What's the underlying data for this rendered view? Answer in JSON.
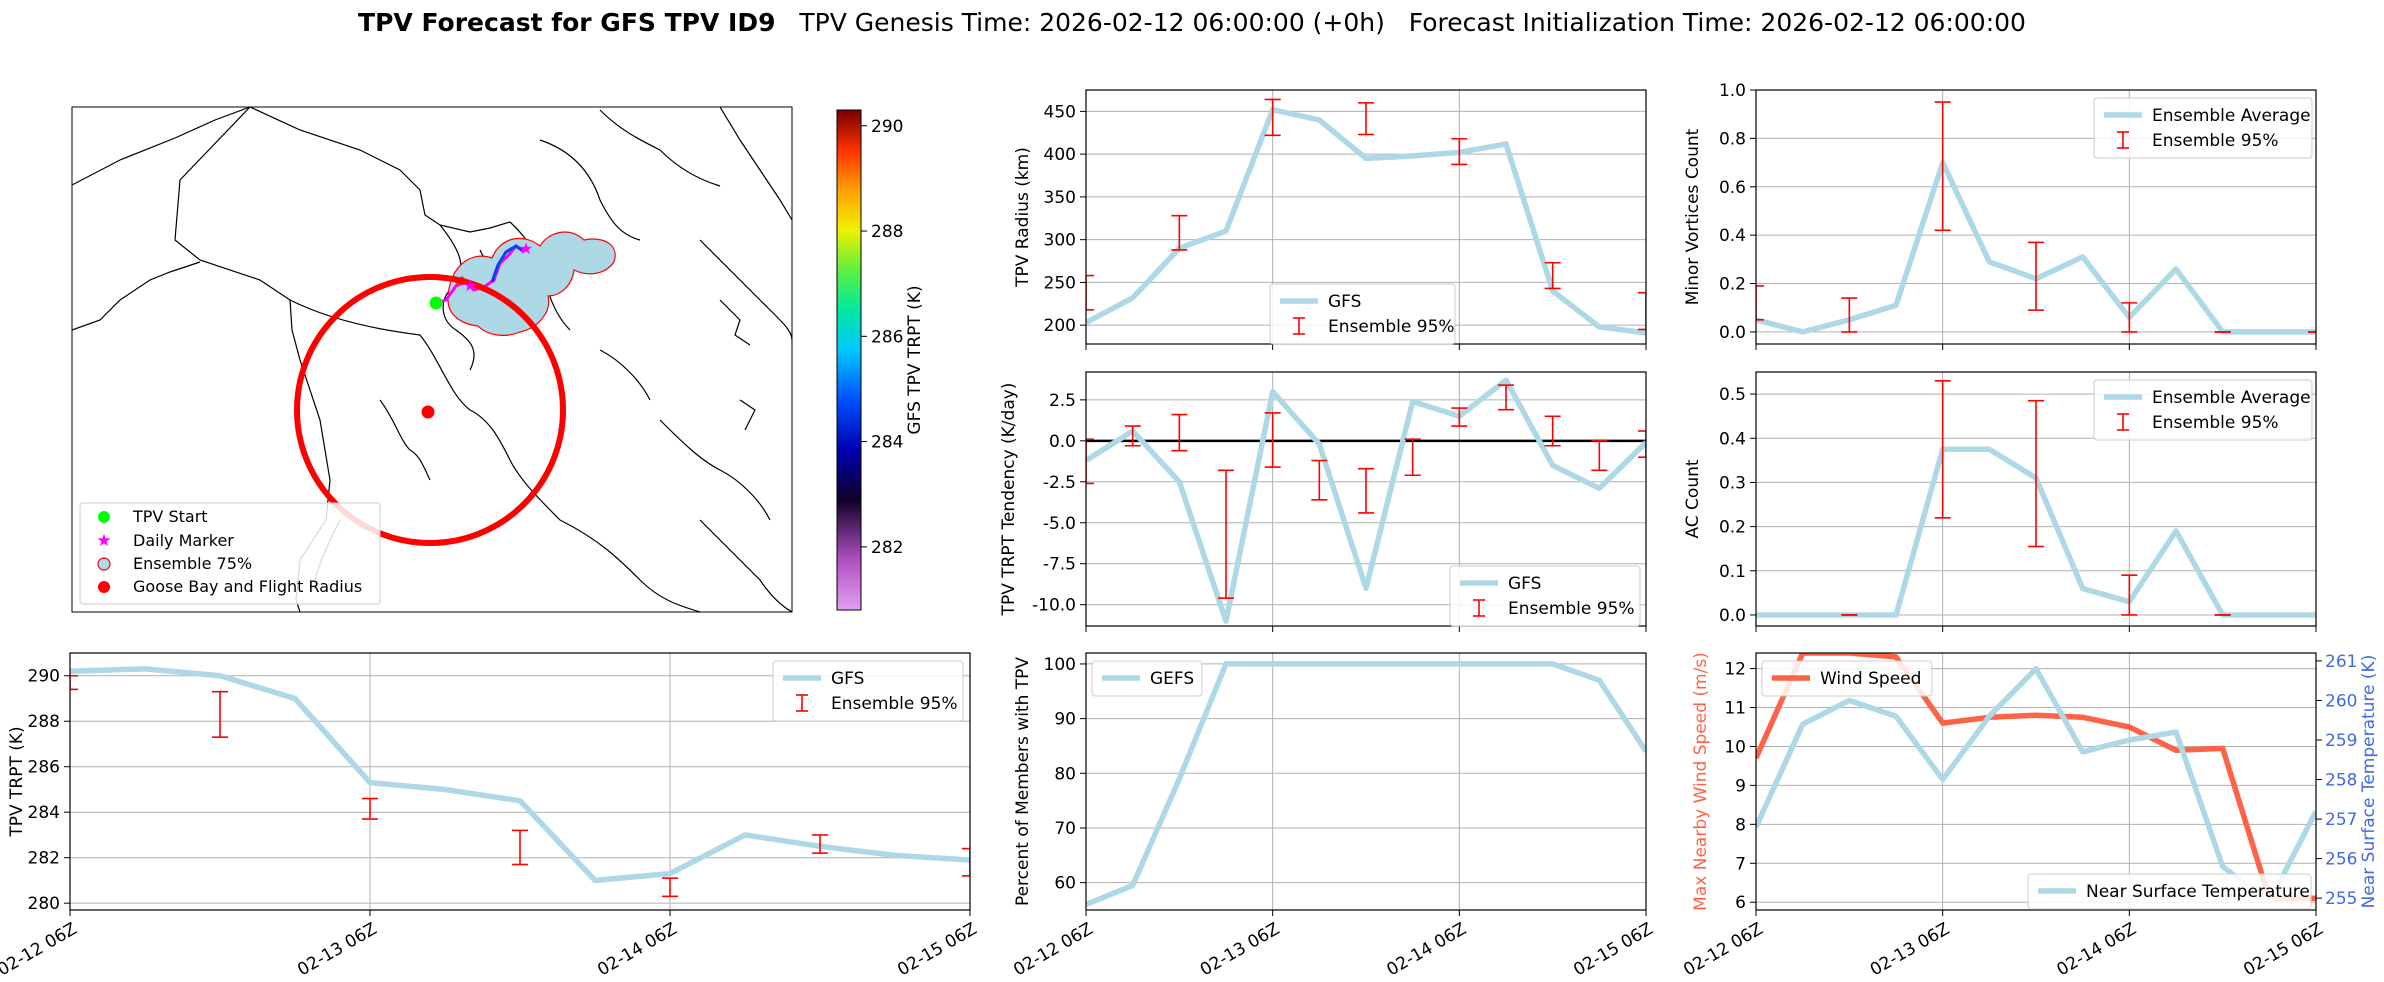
{
  "suptitle": {
    "bold": "TPV Forecast for GFS TPV ID9",
    "genesis": "TPV Genesis Time: 2026-02-12 06:00:00 (+0h)",
    "init": "Forecast Initialization Time: 2026-02-12 06:00:00"
  },
  "map": {
    "legend": [
      "TPV Start",
      "Daily Marker",
      "Ensemble 75%",
      "Goose Bay and Flight Radius"
    ],
    "colorbar_label": "GFS TPV TRPT (K)",
    "colorbar_ticks": [
      282,
      284,
      286,
      288,
      290
    ],
    "colorbar_range": [
      280.8,
      290.3
    ],
    "colors": {
      "start": "#00ff00",
      "daily": "#ff00ff",
      "goose": "#ff0000",
      "ensemble_fill": "#add8e6",
      "ensemble_edge": "#ff0000"
    }
  },
  "x_tick_labels": [
    "02-12 06Z",
    "02-13 06Z",
    "02-14 06Z",
    "02-15 06Z"
  ],
  "colors": {
    "line": "#add8e6",
    "error": "#ff0000",
    "wind": "#ff6347",
    "temp_axis": "#4169e1"
  },
  "chart_data": [
    {
      "id": "radius",
      "type": "line",
      "ylabel": "TPV Radius (km)",
      "xlim": [
        0,
        72
      ],
      "ylim": [
        178,
        475
      ],
      "yticks": [
        200,
        250,
        300,
        350,
        400,
        450
      ],
      "legend": [
        "GFS",
        "Ensemble 95%"
      ],
      "series": [
        {
          "name": "GFS",
          "x": [
            0,
            6,
            12,
            18,
            24,
            30,
            36,
            42,
            48,
            54,
            60,
            66,
            72
          ],
          "y": [
            203,
            232,
            290,
            310,
            452,
            440,
            395,
            398,
            402,
            412,
            240,
            198,
            191
          ]
        }
      ],
      "errorbars": [
        {
          "x": 0,
          "low": 218,
          "high": 258
        },
        {
          "x": 12,
          "low": 288,
          "high": 328
        },
        {
          "x": 24,
          "low": 422,
          "high": 464
        },
        {
          "x": 36,
          "low": 423,
          "high": 460
        },
        {
          "x": 48,
          "low": 388,
          "high": 418
        },
        {
          "x": 60,
          "low": 243,
          "high": 273
        },
        {
          "x": 72,
          "low": 195,
          "high": 238
        }
      ]
    },
    {
      "id": "minor",
      "type": "line",
      "ylabel": "Minor Vortices Count",
      "xlim": [
        0,
        72
      ],
      "ylim": [
        -0.05,
        1.0
      ],
      "yticks": [
        0.0,
        0.2,
        0.4,
        0.6,
        0.8,
        1.0
      ],
      "legend": [
        "Ensemble Average",
        "Ensemble 95%"
      ],
      "series": [
        {
          "name": "Ensemble Average",
          "x": [
            0,
            6,
            12,
            18,
            24,
            30,
            36,
            42,
            48,
            54,
            60,
            66,
            72
          ],
          "y": [
            0.05,
            0.0,
            0.05,
            0.11,
            0.7,
            0.29,
            0.22,
            0.31,
            0.06,
            0.26,
            0.0,
            0.0,
            0.0
          ]
        }
      ],
      "errorbars": [
        {
          "x": 0,
          "low": 0.05,
          "high": 0.19
        },
        {
          "x": 12,
          "low": 0.0,
          "high": 0.14
        },
        {
          "x": 24,
          "low": 0.42,
          "high": 0.95
        },
        {
          "x": 36,
          "low": 0.09,
          "high": 0.37
        },
        {
          "x": 48,
          "low": 0.0,
          "high": 0.12
        },
        {
          "x": 60,
          "low": 0.0,
          "high": 0.0
        },
        {
          "x": 72,
          "low": 0.0,
          "high": 0.0
        }
      ]
    },
    {
      "id": "tendency",
      "type": "line",
      "ylabel": "TPV TRPT Tendency (K/day)",
      "xlim": [
        0,
        72
      ],
      "ylim": [
        -11.3,
        4.2
      ],
      "yticks": [
        -10.0,
        -7.5,
        -5.0,
        -2.5,
        0.0,
        2.5
      ],
      "legend": [
        "GFS",
        "Ensemble 95%"
      ],
      "zero_line": true,
      "series": [
        {
          "name": "GFS",
          "x": [
            0,
            6,
            12,
            18,
            24,
            30,
            36,
            42,
            48,
            54,
            60,
            66,
            72
          ],
          "y": [
            -1.2,
            0.6,
            -2.5,
            -11.0,
            3.0,
            -0.2,
            -9.0,
            2.4,
            1.5,
            3.7,
            -1.5,
            -2.9,
            -0.1
          ]
        }
      ],
      "errorbars": [
        {
          "x": 0,
          "low": -2.6,
          "high": 0.1
        },
        {
          "x": 6,
          "low": -0.3,
          "high": 0.9
        },
        {
          "x": 12,
          "low": -0.6,
          "high": 1.6
        },
        {
          "x": 18,
          "low": -9.6,
          "high": -1.8
        },
        {
          "x": 24,
          "low": -1.6,
          "high": 1.7
        },
        {
          "x": 30,
          "low": -3.6,
          "high": -1.2
        },
        {
          "x": 36,
          "low": -4.4,
          "high": -1.7
        },
        {
          "x": 42,
          "low": -2.1,
          "high": 0.1
        },
        {
          "x": 48,
          "low": 0.9,
          "high": 2.0
        },
        {
          "x": 54,
          "low": 1.9,
          "high": 3.4
        },
        {
          "x": 60,
          "low": -0.3,
          "high": 1.5
        },
        {
          "x": 66,
          "low": -1.8,
          "high": 0.0
        },
        {
          "x": 72,
          "low": -1.0,
          "high": 0.6
        }
      ]
    },
    {
      "id": "ac",
      "type": "line",
      "ylabel": "AC Count",
      "xlim": [
        0,
        72
      ],
      "ylim": [
        -0.025,
        0.55
      ],
      "yticks": [
        0.0,
        0.1,
        0.2,
        0.3,
        0.4,
        0.5
      ],
      "legend": [
        "Ensemble Average",
        "Ensemble 95%"
      ],
      "series": [
        {
          "name": "Ensemble Average",
          "x": [
            0,
            6,
            12,
            18,
            24,
            30,
            36,
            42,
            48,
            54,
            60,
            66,
            72
          ],
          "y": [
            0.0,
            0.0,
            0.0,
            0.0,
            0.375,
            0.375,
            0.31,
            0.06,
            0.03,
            0.19,
            0.0,
            0.0,
            0.0
          ]
        }
      ],
      "errorbars": [
        {
          "x": 12,
          "low": 0.0,
          "high": 0.0
        },
        {
          "x": 24,
          "low": 0.22,
          "high": 0.53
        },
        {
          "x": 36,
          "low": 0.155,
          "high": 0.485
        },
        {
          "x": 48,
          "low": 0.0,
          "high": 0.09
        },
        {
          "x": 60,
          "low": 0.0,
          "high": 0.0
        }
      ]
    },
    {
      "id": "trpt",
      "type": "line",
      "ylabel": "TPV TRPT (K)",
      "xlim": [
        0,
        72
      ],
      "ylim": [
        279.7,
        291.0
      ],
      "yticks": [
        280,
        282,
        284,
        286,
        288,
        290
      ],
      "legend": [
        "GFS",
        "Ensemble 95%"
      ],
      "series": [
        {
          "name": "GFS",
          "x": [
            0,
            6,
            12,
            18,
            24,
            30,
            36,
            42,
            48,
            54,
            60,
            66,
            72
          ],
          "y": [
            290.2,
            290.3,
            290.0,
            289.0,
            285.3,
            285.0,
            284.5,
            281.0,
            281.3,
            283.0,
            282.5,
            282.1,
            281.9
          ]
        }
      ],
      "errorbars": [
        {
          "x": 0,
          "low": 289.4,
          "high": 290.0
        },
        {
          "x": 12,
          "low": 287.3,
          "high": 289.3
        },
        {
          "x": 24,
          "low": 283.7,
          "high": 284.6
        },
        {
          "x": 36,
          "low": 281.7,
          "high": 283.2
        },
        {
          "x": 48,
          "low": 280.3,
          "high": 281.1
        },
        {
          "x": 60,
          "low": 282.2,
          "high": 283.0
        },
        {
          "x": 72,
          "low": 281.2,
          "high": 282.4
        }
      ]
    },
    {
      "id": "percent",
      "type": "line",
      "ylabel": "Percent of Members with TPV",
      "xlim": [
        0,
        72
      ],
      "ylim": [
        55,
        102
      ],
      "yticks": [
        60,
        70,
        80,
        90,
        100
      ],
      "legend": [
        "GEFS"
      ],
      "series": [
        {
          "name": "GEFS",
          "x": [
            0,
            6,
            12,
            18,
            24,
            30,
            36,
            42,
            48,
            54,
            60,
            66,
            72
          ],
          "y": [
            56,
            59.5,
            79,
            100,
            100,
            100,
            100,
            100,
            100,
            100,
            100,
            97,
            84
          ]
        }
      ]
    },
    {
      "id": "wind_temp",
      "type": "line",
      "ylabel": "Max Nearby Wind Speed (m/s)",
      "ylabel_right": "Near Surface Temperature (K)",
      "xlim": [
        0,
        72
      ],
      "ylim": [
        5.8,
        12.4
      ],
      "yticks": [
        6,
        7,
        8,
        9,
        10,
        11,
        12
      ],
      "ylim_right": [
        254.7,
        261.2
      ],
      "yticks_right": [
        255,
        256,
        257,
        258,
        259,
        260,
        261
      ],
      "legend": [
        "Wind Speed"
      ],
      "legend_right": [
        "Near Surface Temperature"
      ],
      "series": [
        {
          "name": "Wind Speed",
          "axis": "left",
          "x": [
            0,
            6,
            12,
            18,
            24,
            30,
            36,
            42,
            48,
            54,
            60,
            66,
            72
          ],
          "y": [
            9.7,
            12.4,
            12.4,
            12.3,
            10.6,
            10.75,
            10.8,
            10.75,
            10.5,
            9.9,
            9.95,
            6.1,
            6.1
          ]
        },
        {
          "name": "Near Surface Temperature",
          "axis": "right",
          "x": [
            0,
            6,
            12,
            18,
            24,
            30,
            36,
            42,
            48,
            54,
            60,
            66,
            72
          ],
          "y": [
            256.8,
            259.4,
            260.0,
            259.6,
            258.0,
            259.6,
            260.8,
            258.7,
            259.0,
            259.2,
            255.8,
            254.9,
            257.2
          ]
        }
      ]
    }
  ]
}
